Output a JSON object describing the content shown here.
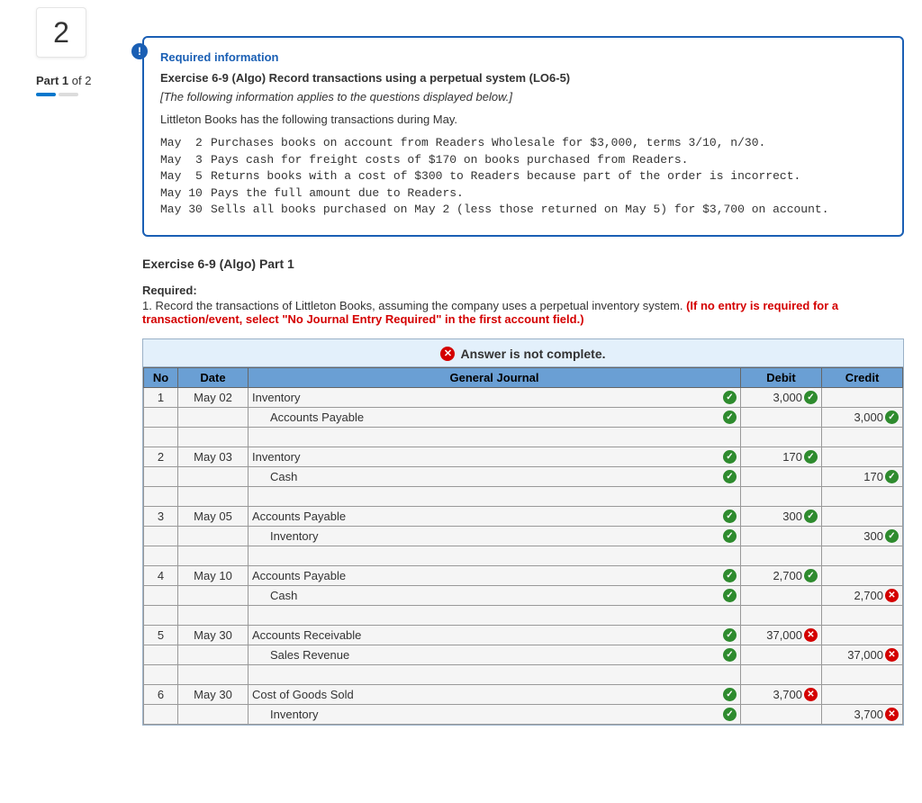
{
  "question_number": "2",
  "part_label_prefix": "Part 1",
  "part_label_suffix": " of 2",
  "required_heading": "Required information",
  "exercise_title": "Exercise 6-9 (Algo) Record transactions using a perpetual system (LO6-5)",
  "applies_note": "[The following information applies to the questions displayed below.]",
  "intro_text": "Littleton Books has the following transactions during May.",
  "transactions": [
    {
      "date": "May  2",
      "text": "Purchases books on account from Readers Wholesale for $3,000, terms 3/10, n/30."
    },
    {
      "date": "May  3",
      "text": "Pays cash for freight costs of $170 on books purchased from Readers."
    },
    {
      "date": "May  5",
      "text": "Returns books with a cost of $300 to Readers because part of the order is incorrect."
    },
    {
      "date": "May 10",
      "text": "Pays the full amount due to Readers."
    },
    {
      "date": "May 30",
      "text": "Sells all books purchased on May 2 (less those returned on May 5) for $3,700 on account."
    }
  ],
  "part_title": "Exercise 6-9 (Algo) Part 1",
  "required_label": "Required:",
  "required_text_1": "1. Record the transactions of Littleton Books, assuming the company uses a perpetual inventory system. ",
  "required_text_red": "(If no entry is required for a transaction/event, select \"No Journal Entry Required\" in the first account field.)",
  "banner_text": "Answer is not complete.",
  "headers": {
    "no": "No",
    "date": "Date",
    "gj": "General Journal",
    "debit": "Debit",
    "credit": "Credit"
  },
  "entries": [
    {
      "no": "1",
      "date": "May 02",
      "lines": [
        {
          "account": "Inventory",
          "acct_ok": true,
          "debit": "3,000",
          "debit_ok": true,
          "credit": "",
          "credit_ok": null,
          "indent": false
        },
        {
          "account": "Accounts Payable",
          "acct_ok": true,
          "debit": "",
          "debit_ok": null,
          "credit": "3,000",
          "credit_ok": true,
          "indent": true
        }
      ]
    },
    {
      "no": "2",
      "date": "May 03",
      "lines": [
        {
          "account": "Inventory",
          "acct_ok": true,
          "debit": "170",
          "debit_ok": true,
          "credit": "",
          "credit_ok": null,
          "indent": false
        },
        {
          "account": "Cash",
          "acct_ok": true,
          "debit": "",
          "debit_ok": null,
          "credit": "170",
          "credit_ok": true,
          "indent": true
        }
      ]
    },
    {
      "no": "3",
      "date": "May 05",
      "lines": [
        {
          "account": "Accounts Payable",
          "acct_ok": true,
          "debit": "300",
          "debit_ok": true,
          "credit": "",
          "credit_ok": null,
          "indent": false
        },
        {
          "account": "Inventory",
          "acct_ok": true,
          "debit": "",
          "debit_ok": null,
          "credit": "300",
          "credit_ok": true,
          "indent": true
        }
      ]
    },
    {
      "no": "4",
      "date": "May 10",
      "lines": [
        {
          "account": "Accounts Payable",
          "acct_ok": true,
          "debit": "2,700",
          "debit_ok": true,
          "credit": "",
          "credit_ok": null,
          "indent": false
        },
        {
          "account": "Cash",
          "acct_ok": true,
          "debit": "",
          "debit_ok": null,
          "credit": "2,700",
          "credit_ok": false,
          "indent": true
        }
      ]
    },
    {
      "no": "5",
      "date": "May 30",
      "lines": [
        {
          "account": "Accounts Receivable",
          "acct_ok": true,
          "debit": "37,000",
          "debit_ok": false,
          "credit": "",
          "credit_ok": null,
          "indent": false
        },
        {
          "account": "Sales Revenue",
          "acct_ok": true,
          "debit": "",
          "debit_ok": null,
          "credit": "37,000",
          "credit_ok": false,
          "indent": true
        }
      ]
    },
    {
      "no": "6",
      "date": "May 30",
      "lines": [
        {
          "account": "Cost of Goods Sold",
          "acct_ok": true,
          "debit": "3,700",
          "debit_ok": false,
          "credit": "",
          "credit_ok": null,
          "indent": false
        },
        {
          "account": "Inventory",
          "acct_ok": true,
          "debit": "",
          "debit_ok": null,
          "credit": "3,700",
          "credit_ok": false,
          "indent": true
        }
      ]
    }
  ]
}
